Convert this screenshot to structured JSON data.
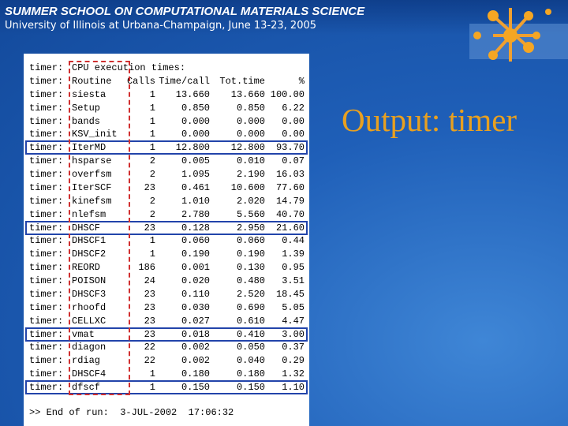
{
  "header": {
    "title": "SUMMER SCHOOL ON COMPUTATIONAL MATERIALS SCIENCE",
    "subtitle": "University of Illinois at Urbana-Champaign, June 13-23, 2005"
  },
  "slide_title": "Output: timer",
  "table": {
    "prefix": "timer:",
    "caption": "CPU execution times:",
    "columns": [
      "Routine",
      "Calls",
      "Time/call",
      "Tot.time",
      "%"
    ],
    "rows": [
      [
        "siesta",
        "1",
        "13.660",
        "13.660",
        "100.00"
      ],
      [
        "Setup",
        "1",
        "0.850",
        "0.850",
        "6.22"
      ],
      [
        "bands",
        "1",
        "0.000",
        "0.000",
        "0.00"
      ],
      [
        "KSV_init",
        "1",
        "0.000",
        "0.000",
        "0.00"
      ],
      [
        "IterMD",
        "1",
        "12.800",
        "12.800",
        "93.70"
      ],
      [
        "hsparse",
        "2",
        "0.005",
        "0.010",
        "0.07"
      ],
      [
        "overfsm",
        "2",
        "1.095",
        "2.190",
        "16.03"
      ],
      [
        "IterSCF",
        "23",
        "0.461",
        "10.600",
        "77.60"
      ],
      [
        "kinefsm",
        "2",
        "1.010",
        "2.020",
        "14.79"
      ],
      [
        "nlefsm",
        "2",
        "2.780",
        "5.560",
        "40.70"
      ],
      [
        "DHSCF",
        "23",
        "0.128",
        "2.950",
        "21.60"
      ],
      [
        "DHSCF1",
        "1",
        "0.060",
        "0.060",
        "0.44"
      ],
      [
        "DHSCF2",
        "1",
        "0.190",
        "0.190",
        "1.39"
      ],
      [
        "REORD",
        "186",
        "0.001",
        "0.130",
        "0.95"
      ],
      [
        "POISON",
        "24",
        "0.020",
        "0.480",
        "3.51"
      ],
      [
        "DHSCF3",
        "23",
        "0.110",
        "2.520",
        "18.45"
      ],
      [
        "rhoofd",
        "23",
        "0.030",
        "0.690",
        "5.05"
      ],
      [
        "CELLXC",
        "23",
        "0.027",
        "0.610",
        "4.47"
      ],
      [
        "vmat",
        "23",
        "0.018",
        "0.410",
        "3.00"
      ],
      [
        "diagon",
        "22",
        "0.002",
        "0.050",
        "0.37"
      ],
      [
        "rdiag",
        "22",
        "0.002",
        "0.040",
        "0.29"
      ],
      [
        "DHSCF4",
        "1",
        "0.180",
        "0.180",
        "1.32"
      ],
      [
        "dfscf",
        "1",
        "0.150",
        "0.150",
        "1.10"
      ]
    ],
    "footer": ">> End of run:  3-JUL-2002  17:06:32"
  }
}
